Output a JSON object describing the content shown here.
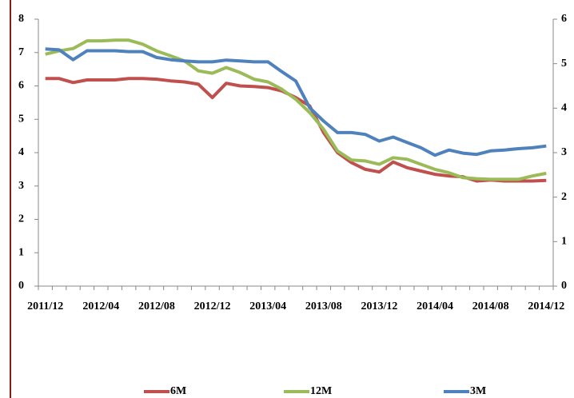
{
  "chart_data": {
    "type": "line",
    "categories": [
      "2011/12",
      null,
      null,
      null,
      "2012/04",
      null,
      null,
      null,
      "2012/08",
      null,
      null,
      null,
      "2012/12",
      null,
      null,
      null,
      "2013/04",
      null,
      null,
      null,
      "2013/08",
      null,
      null,
      null,
      "2013/12",
      null,
      null,
      null,
      "2014/04",
      null,
      null,
      null,
      "2014/08",
      null,
      null,
      null,
      "2014/12"
    ],
    "series": [
      {
        "name": "6M",
        "color": "#c0504d",
        "values": [
          6.22,
          6.22,
          6.1,
          6.18,
          6.18,
          6.18,
          6.22,
          6.22,
          6.2,
          6.15,
          6.12,
          6.05,
          5.65,
          6.08,
          6.0,
          5.98,
          5.95,
          5.85,
          5.65,
          5.4,
          4.6,
          4.0,
          3.7,
          3.5,
          3.42,
          3.72,
          3.55,
          3.45,
          3.35,
          3.3,
          3.28,
          3.15,
          3.18,
          3.15,
          3.15,
          3.15,
          3.17
        ]
      },
      {
        "name": "12M",
        "color": "#9bbb59",
        "values": [
          6.95,
          7.05,
          7.12,
          7.35,
          7.35,
          7.37,
          7.37,
          7.25,
          7.05,
          6.9,
          6.75,
          6.45,
          6.38,
          6.55,
          6.4,
          6.2,
          6.12,
          5.9,
          5.6,
          5.2,
          4.7,
          4.05,
          3.78,
          3.75,
          3.65,
          3.85,
          3.8,
          3.65,
          3.5,
          3.4,
          3.25,
          3.22,
          3.2,
          3.2,
          3.2,
          3.3,
          3.38
        ]
      },
      {
        "name": "3M",
        "color": "#4f81bd",
        "axis": "y2",
        "values": [
          5.33,
          5.31,
          5.09,
          5.29,
          5.29,
          5.29,
          5.27,
          5.27,
          5.14,
          5.09,
          5.06,
          5.04,
          5.04,
          5.08,
          5.06,
          5.04,
          5.04,
          4.82,
          4.61,
          4.01,
          3.71,
          3.45,
          3.45,
          3.41,
          3.26,
          3.35,
          3.23,
          3.11,
          2.94,
          3.06,
          2.99,
          2.96,
          3.04,
          3.06,
          3.09,
          3.11,
          3.15
        ]
      }
    ],
    "ylim": [
      0,
      8
    ],
    "yticks": [
      0,
      1,
      2,
      3,
      4,
      5,
      6,
      7,
      8
    ],
    "y2lim": [
      0,
      6
    ],
    "y2ticks": [
      0,
      1,
      2,
      3,
      4,
      5,
      6
    ]
  }
}
